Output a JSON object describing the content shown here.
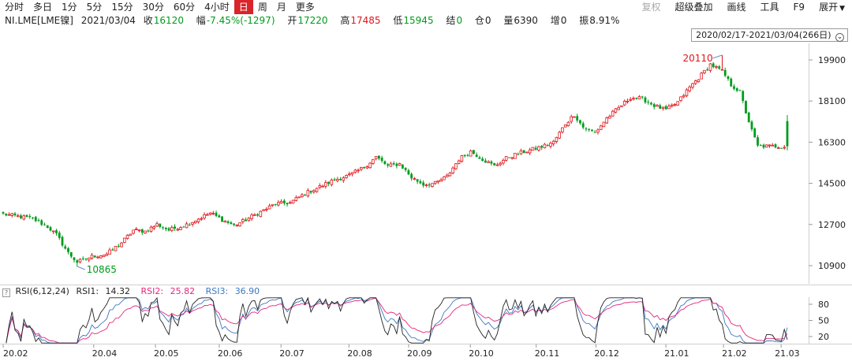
{
  "toolbar": {
    "periods": [
      "分时",
      "多日",
      "1分",
      "5分",
      "15分",
      "30分",
      "60分",
      "4小时",
      "日",
      "周",
      "月",
      "更多"
    ],
    "active_period": "日",
    "right": [
      "复权",
      "超级叠加",
      "画线",
      "工具",
      "F9",
      "展开"
    ]
  },
  "quote": {
    "symbol": "NI.LME[LME镍]",
    "date": "2021/03/04",
    "close_label": "收",
    "close": "16120",
    "change_label": "幅",
    "change": "-7.45%(-1297)",
    "open_label": "开",
    "open": "17220",
    "high_label": "高",
    "high": "17485",
    "low_label": "低",
    "low": "15945",
    "settle_label": "结",
    "settle": "0",
    "oi_label": "仓",
    "oi": "0",
    "volume_label": "量",
    "volume": "6390",
    "increase_label": "增",
    "increase": "0",
    "amplitude_label": "振",
    "amplitude": "8.91%"
  },
  "range": {
    "label": "2020/02/17-2021/03/04(266日)"
  },
  "price_axis": {
    "ticks": [
      "19900",
      "18100",
      "16300",
      "14500",
      "12700",
      "10900"
    ]
  },
  "annotations": {
    "max": "20110",
    "min": "10865"
  },
  "rsi": {
    "title": "RSI(6,12,24)",
    "rsi1_label": "RSI1:",
    "rsi1": "14.32",
    "rsi2_label": "RSI2:",
    "rsi2": "25.82",
    "rsi3_label": "RSI3:",
    "rsi3": "36.90",
    "ticks": [
      "80",
      "50",
      "20"
    ]
  },
  "date_axis": {
    "ticks": [
      "20.02",
      "20.04",
      "20.05",
      "20.06",
      "20.07",
      "20.08",
      "20.09",
      "20.10",
      "20.11",
      "20.12",
      "21.01",
      "21.02",
      "21.03"
    ]
  },
  "colors": {
    "up": "#e0161c",
    "down": "#009b1c",
    "active_tab": "#d8242a",
    "rsi1": "#222222",
    "rsi2": "#e5267c",
    "rsi3": "#3a78c2"
  },
  "chart_data": {
    "type": "candlestick",
    "x_start": "2020/02/17",
    "x_end": "2021/03/04",
    "bars": 266,
    "ylim": [
      10300,
      20500
    ],
    "control_points": [
      [
        0,
        13150
      ],
      [
        10,
        12950
      ],
      [
        15,
        12600
      ],
      [
        18,
        12250
      ],
      [
        22,
        11450
      ],
      [
        25,
        11050
      ],
      [
        30,
        11300
      ],
      [
        35,
        11400
      ],
      [
        40,
        11900
      ],
      [
        44,
        12450
      ],
      [
        48,
        12400
      ],
      [
        52,
        12700
      ],
      [
        56,
        12450
      ],
      [
        62,
        12700
      ],
      [
        66,
        12950
      ],
      [
        70,
        13200
      ],
      [
        74,
        12900
      ],
      [
        78,
        12650
      ],
      [
        82,
        12900
      ],
      [
        87,
        13250
      ],
      [
        92,
        13600
      ],
      [
        97,
        13650
      ],
      [
        102,
        14050
      ],
      [
        107,
        14350
      ],
      [
        112,
        14650
      ],
      [
        117,
        14850
      ],
      [
        122,
        15200
      ],
      [
        126,
        15650
      ],
      [
        130,
        15250
      ],
      [
        134,
        15350
      ],
      [
        138,
        14750
      ],
      [
        142,
        14450
      ],
      [
        146,
        14500
      ],
      [
        150,
        14800
      ],
      [
        154,
        15550
      ],
      [
        158,
        15900
      ],
      [
        162,
        15550
      ],
      [
        166,
        15250
      ],
      [
        170,
        15600
      ],
      [
        174,
        15800
      ],
      [
        178,
        15950
      ],
      [
        182,
        16100
      ],
      [
        186,
        16300
      ],
      [
        190,
        17100
      ],
      [
        193,
        17500
      ],
      [
        196,
        16950
      ],
      [
        200,
        16700
      ],
      [
        204,
        17350
      ],
      [
        208,
        17800
      ],
      [
        212,
        18250
      ],
      [
        216,
        18200
      ],
      [
        220,
        17900
      ],
      [
        224,
        17700
      ],
      [
        228,
        18050
      ],
      [
        232,
        18700
      ],
      [
        236,
        19250
      ],
      [
        239,
        19700
      ],
      [
        243,
        19400
      ],
      [
        246,
        18800
      ],
      [
        249,
        18500
      ],
      [
        251,
        17600
      ],
      [
        253,
        16800
      ],
      [
        255,
        16120
      ]
    ],
    "max_point": {
      "x": 243,
      "y": 20110
    },
    "min_point": {
      "x": 25,
      "y": 10865
    },
    "last": {
      "open": 17220,
      "high": 17485,
      "low": 15945,
      "close": 16120
    },
    "rsi": {
      "rsi1": 14.32,
      "rsi2": 25.82,
      "rsi3": 36.9
    }
  }
}
